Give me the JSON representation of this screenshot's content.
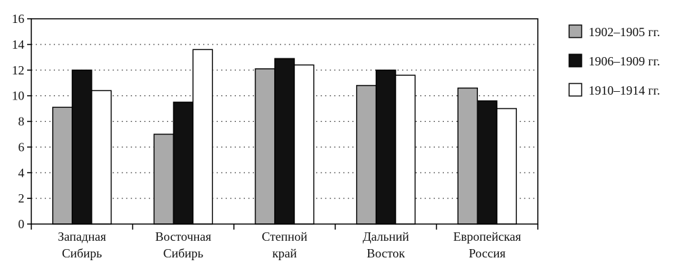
{
  "chart_data": {
    "type": "bar",
    "categories": [
      [
        "Западная",
        "Сибирь"
      ],
      [
        "Восточная",
        "Сибирь"
      ],
      [
        "Степной",
        "край"
      ],
      [
        "Дальний",
        "Восток"
      ],
      [
        "Европейская",
        "Россия"
      ]
    ],
    "series": [
      {
        "name": "1902–1905 гг.",
        "color": "#aaaaaa",
        "values": [
          9.1,
          7.0,
          12.1,
          10.8,
          10.6
        ]
      },
      {
        "name": "1906–1909 гг.",
        "color": "#111111",
        "values": [
          12.0,
          9.5,
          12.9,
          12.0,
          9.6
        ]
      },
      {
        "name": "1910–1914 гг.",
        "color": "#ffffff",
        "values": [
          10.4,
          13.6,
          12.4,
          11.6,
          9.0
        ]
      }
    ],
    "y_ticks": [
      0,
      2,
      4,
      6,
      8,
      10,
      12,
      14,
      16
    ],
    "ylim": [
      0,
      16
    ],
    "grid": "dotted horizontal",
    "legend_position": "right"
  }
}
